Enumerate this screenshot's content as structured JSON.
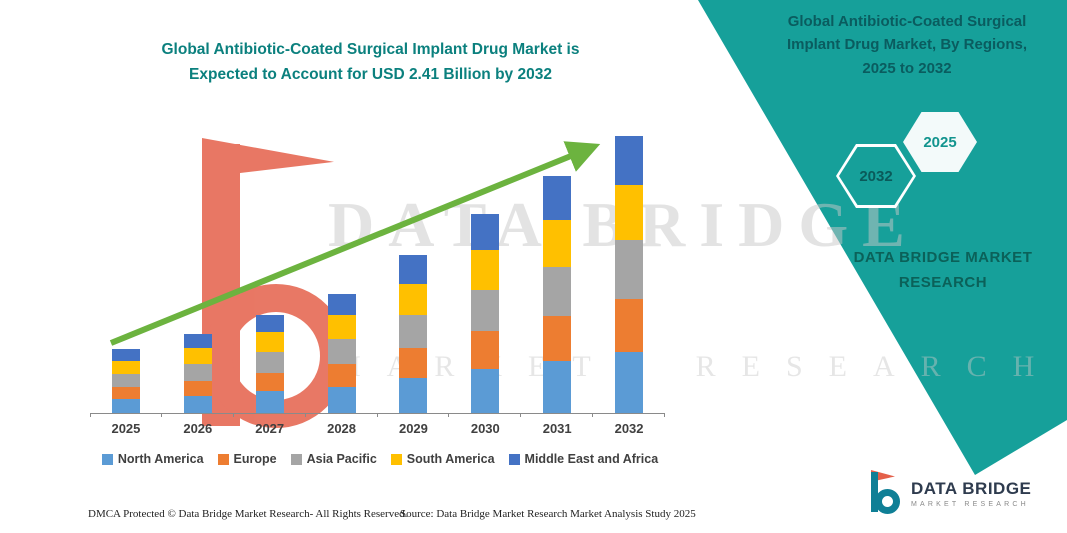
{
  "title": {
    "line1": "Global Antibiotic-Coated Surgical Implant Drug Market is",
    "line2": "Expected to Account for USD 2.41 Billion by 2032"
  },
  "right_panel": {
    "title_line1": "Global Antibiotic-Coated Surgical",
    "title_line2": "Implant Drug Market, By Regions,",
    "title_line3": "2025 to 2032",
    "hexagon_back": "2032",
    "hexagon_front": "2025",
    "brand_line1": "DATA BRIDGE MARKET",
    "brand_line2": "RESEARCH"
  },
  "watermark": {
    "line1": "DATA BRIDGE",
    "line2": "MARKET RESEARCH"
  },
  "footer": {
    "dmca": "DMCA Protected © Data Bridge Market Research-  All Rights Reserved.",
    "source": "Source: Data Bridge Market Research  Market Analysis Study 2025"
  },
  "logo": {
    "name": "DATA BRIDGE",
    "subtitle": "MARKET RESEARCH"
  },
  "colors": {
    "teal_band": "#16A09A",
    "title_teal": "#0B807E",
    "arrow_green": "#6CB33F",
    "watermark_coral": "#E4604A"
  },
  "chart_data": {
    "type": "bar",
    "stacked": true,
    "title": "Global Antibiotic-Coated Surgical Implant Drug Market is Expected to Account for USD 2.41 Billion by 2032",
    "unit": "USD Billion",
    "categories": [
      "2025",
      "2026",
      "2027",
      "2028",
      "2029",
      "2030",
      "2031",
      "2032"
    ],
    "series": [
      {
        "name": "North America",
        "color": "#5B9BD5",
        "values": [
          0.12,
          0.15,
          0.19,
          0.23,
          0.3,
          0.38,
          0.45,
          0.53
        ]
      },
      {
        "name": "Europe",
        "color": "#ED7D31",
        "values": [
          0.1,
          0.13,
          0.16,
          0.2,
          0.26,
          0.33,
          0.39,
          0.46
        ]
      },
      {
        "name": "Asia Pacific",
        "color": "#A5A5A5",
        "values": [
          0.11,
          0.15,
          0.18,
          0.22,
          0.29,
          0.36,
          0.43,
          0.51
        ]
      },
      {
        "name": "South America",
        "color": "#FFC000",
        "values": [
          0.11,
          0.14,
          0.17,
          0.21,
          0.27,
          0.35,
          0.41,
          0.48
        ]
      },
      {
        "name": "Middle East and Africa",
        "color": "#4472C4",
        "values": [
          0.1,
          0.12,
          0.15,
          0.18,
          0.25,
          0.31,
          0.38,
          0.43
        ]
      }
    ],
    "totals_estimated": [
      0.54,
      0.69,
      0.85,
      1.04,
      1.37,
      1.73,
      2.06,
      2.41
    ],
    "ylim": [
      0,
      2.6
    ],
    "grid": false,
    "legend_position": "bottom",
    "annotations": [
      "green upward trend arrow from 2025 to 2032"
    ]
  }
}
